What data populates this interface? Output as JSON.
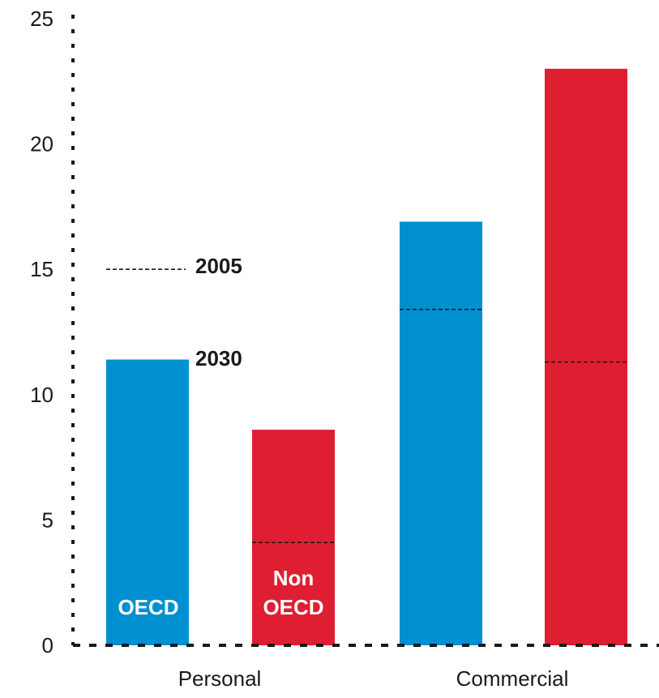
{
  "chart_data": {
    "type": "bar",
    "categories": [
      "Personal",
      "Commercial"
    ],
    "series": [
      {
        "name": "OECD",
        "color": "#0090d0",
        "values_2030": [
          11.4,
          16.9
        ],
        "values_2005": [
          15.0,
          13.4
        ]
      },
      {
        "name_lines": [
          "Non",
          "OECD"
        ],
        "color": "#e01e32",
        "values_2030": [
          8.6,
          23.0
        ],
        "values_2005": [
          4.1,
          11.3
        ]
      }
    ],
    "annotations": {
      "y2005": "2005",
      "y2030": "2030"
    },
    "ylim": [
      0,
      25
    ],
    "yticks": [
      0,
      5,
      10,
      15,
      20,
      25
    ],
    "grid": false
  }
}
